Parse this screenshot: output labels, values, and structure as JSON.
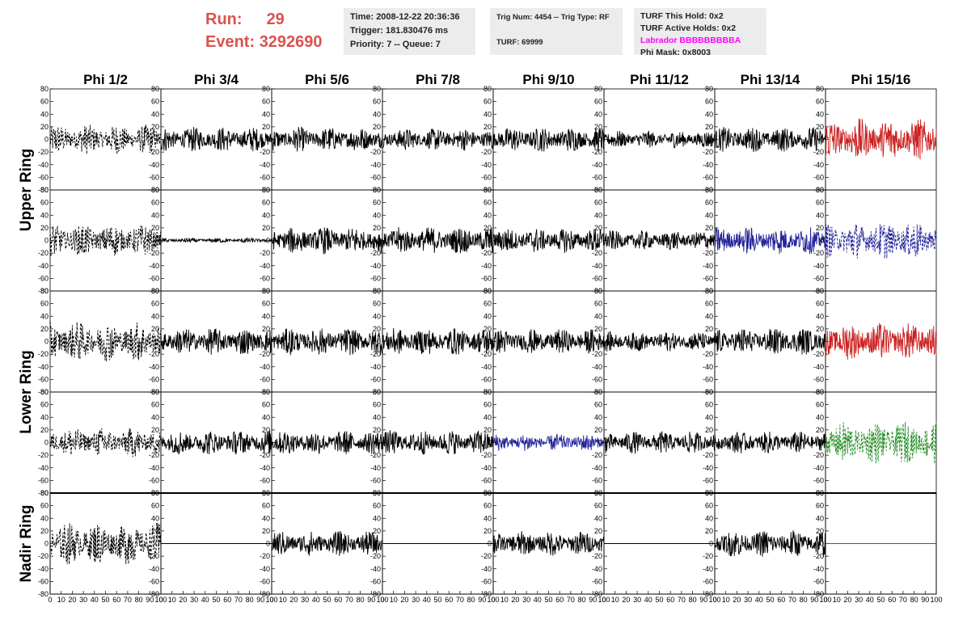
{
  "header": {
    "run_label": "Run:",
    "run_value": "29",
    "event_label": "Event:",
    "event_value": "3292690"
  },
  "info_panel_1": {
    "time": "Time: 2008-12-22 20:36:36",
    "trigger": "Trigger: 181.830476 ms",
    "priority": "Priority: 7 -- Queue: 7"
  },
  "info_panel_2": {
    "trig": "Trig Num: 4454 -- Trig Type: RF",
    "turf": "TURF: 69999"
  },
  "info_panel_3": {
    "this_hold": "TURF This Hold: 0x2",
    "active_holds": "TURF Active Holds: 0x2",
    "labrador": "Labrador BBBBBBBBBA",
    "phi_mask": "Phi Mask: 0x8003"
  },
  "columns": [
    "Phi 1/2",
    "Phi 3/4",
    "Phi 5/6",
    "Phi 7/8",
    "Phi 9/10",
    "Phi 11/12",
    "Phi 13/14",
    "Phi 15/16"
  ],
  "ring_labels": [
    "Upper Ring",
    "Lower Ring",
    "Nadir Ring"
  ],
  "colors": {
    "black": "#000000",
    "red": "#cc2222",
    "blue": "#22229a",
    "green": "#1f8a1f",
    "header_red": "#d9534f",
    "magenta": "#ff00ff"
  },
  "chart_data": {
    "type": "line",
    "title": "",
    "xlabel": "",
    "ylabel": "",
    "xlim": [
      0,
      100
    ],
    "ylim": [
      -80,
      80
    ],
    "y_ticks": [
      -80,
      -60,
      -40,
      -20,
      0,
      20,
      40,
      60,
      80
    ],
    "x_ticks": [
      0,
      10,
      20,
      30,
      40,
      50,
      60,
      70,
      80,
      90,
      100
    ],
    "panels": [
      [
        {
          "amp": 24,
          "color": "black",
          "dashed": true
        },
        {
          "amp": 20,
          "color": "black",
          "dashed": false
        },
        {
          "amp": 20,
          "color": "black",
          "dashed": false
        },
        {
          "amp": 18,
          "color": "black",
          "dashed": false
        },
        {
          "amp": 20,
          "color": "black",
          "dashed": false
        },
        {
          "amp": 14,
          "color": "black",
          "dashed": false
        },
        {
          "amp": 20,
          "color": "black",
          "dashed": false
        },
        {
          "amp": 34,
          "color": "red",
          "dashed": false
        }
      ],
      [
        {
          "amp": 26,
          "color": "black",
          "dashed": true
        },
        {
          "amp": 4,
          "color": "black",
          "dashed": false
        },
        {
          "amp": 22,
          "color": "black",
          "dashed": false
        },
        {
          "amp": 22,
          "color": "black",
          "dashed": false
        },
        {
          "amp": 20,
          "color": "black",
          "dashed": false
        },
        {
          "amp": 16,
          "color": "black",
          "dashed": false
        },
        {
          "amp": 22,
          "color": "blue",
          "dashed": false
        },
        {
          "amp": 30,
          "color": "blue",
          "dashed": true
        }
      ],
      [
        {
          "amp": 32,
          "color": "black",
          "dashed": true
        },
        {
          "amp": 22,
          "color": "black",
          "dashed": false
        },
        {
          "amp": 22,
          "color": "black",
          "dashed": false
        },
        {
          "amp": 22,
          "color": "black",
          "dashed": false
        },
        {
          "amp": 20,
          "color": "black",
          "dashed": false
        },
        {
          "amp": 16,
          "color": "black",
          "dashed": false
        },
        {
          "amp": 22,
          "color": "black",
          "dashed": false
        },
        {
          "amp": 30,
          "color": "red",
          "dashed": false
        }
      ],
      [
        {
          "amp": 24,
          "color": "black",
          "dashed": true
        },
        {
          "amp": 20,
          "color": "black",
          "dashed": false
        },
        {
          "amp": 20,
          "color": "black",
          "dashed": false
        },
        {
          "amp": 20,
          "color": "black",
          "dashed": false
        },
        {
          "amp": 14,
          "color": "blue",
          "dashed": false
        },
        {
          "amp": 18,
          "color": "black",
          "dashed": false
        },
        {
          "amp": 18,
          "color": "black",
          "dashed": false
        },
        {
          "amp": 34,
          "color": "green",
          "dashed": true
        }
      ],
      [
        {
          "amp": 34,
          "color": "black",
          "dashed": true
        },
        {
          "amp": 0,
          "color": "black",
          "dashed": false
        },
        {
          "amp": 20,
          "color": "black",
          "dashed": false
        },
        {
          "amp": 0,
          "color": "black",
          "dashed": false
        },
        {
          "amp": 20,
          "color": "black",
          "dashed": false
        },
        {
          "amp": 0,
          "color": "black",
          "dashed": false
        },
        {
          "amp": 22,
          "color": "black",
          "dashed": false
        },
        {
          "amp": 0,
          "color": "red",
          "dashed": false
        }
      ]
    ]
  }
}
